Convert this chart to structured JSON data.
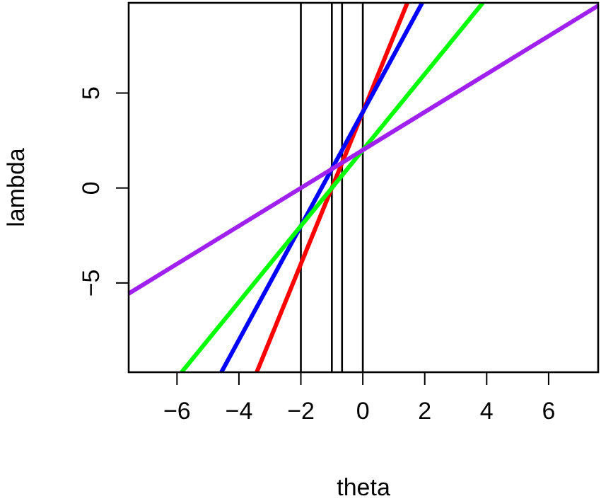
{
  "chart_data": {
    "type": "line",
    "xlabel": "theta",
    "ylabel": "lambda",
    "xlim": [
      -7.56,
      7.6
    ],
    "ylim": [
      -9.7,
      9.75
    ],
    "xticks": [
      -6,
      -4,
      -2,
      0,
      2,
      4,
      6
    ],
    "yticks": [
      -5,
      0,
      5
    ],
    "series": [
      {
        "color": "#ff0000",
        "x": [
          -3.425,
          1.4375
        ],
        "values": [
          -9.7,
          9.75
        ]
      },
      {
        "color": "#0000ff",
        "x": [
          -4.567,
          1.917
        ],
        "values": [
          -9.7,
          9.75
        ]
      },
      {
        "color": "#00ff00",
        "x": [
          -5.85,
          3.875
        ],
        "values": [
          -9.7,
          9.75
        ]
      },
      {
        "color": "#a020f0",
        "x": [
          -7.56,
          7.6
        ],
        "values": [
          -5.56,
          9.6
        ]
      }
    ],
    "ref_lines": [
      {
        "axis": "x",
        "value": -2,
        "color": "#000000"
      },
      {
        "axis": "x",
        "value": -1,
        "color": "#000000"
      },
      {
        "axis": "x",
        "value": -0.67,
        "color": "#000000"
      },
      {
        "axis": "x",
        "value": 0,
        "color": "#000000"
      }
    ],
    "grid": false,
    "marker": "none",
    "line_style": "solid"
  }
}
